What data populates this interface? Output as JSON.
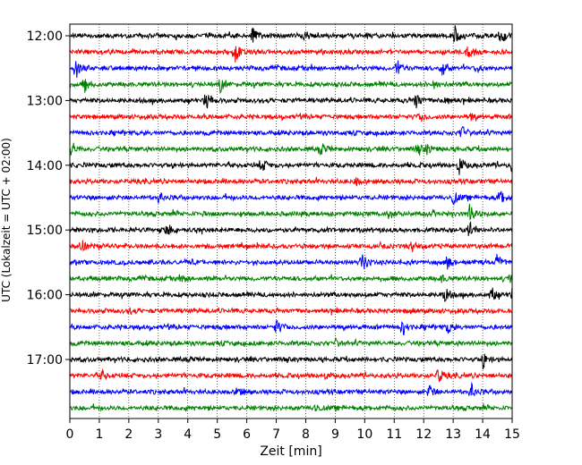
{
  "chart_data": {
    "type": "line",
    "title": "",
    "xlabel": "Zeit  [min]",
    "ylabel": "UTC (Lokalzeit = UTC + 02:00)",
    "xlim": [
      0,
      15
    ],
    "x_ticks": [
      "0",
      "1",
      "2",
      "3",
      "4",
      "5",
      "6",
      "7",
      "8",
      "9",
      "10",
      "11",
      "12",
      "13",
      "14",
      "15"
    ],
    "y_tick_labels": [
      "12:00",
      "13:00",
      "14:00",
      "15:00",
      "16:00",
      "17:00"
    ],
    "grid": "vertical dotted at each minute",
    "trace_colors": [
      "#000000",
      "#ff0000",
      "#0000ff",
      "#008000"
    ],
    "traces": [
      {
        "start": "12:00",
        "color": "#000000",
        "events": [
          [
            6.2,
            1.0
          ],
          [
            8.0,
            0.5
          ],
          [
            13.05,
            1.0
          ],
          [
            14.6,
            0.8
          ]
        ]
      },
      {
        "start": "12:15",
        "color": "#ff0000",
        "events": [
          [
            5.6,
            1.2
          ],
          [
            13.5,
            0.9
          ]
        ]
      },
      {
        "start": "12:30",
        "color": "#0000ff",
        "events": [
          [
            0.2,
            1.2
          ],
          [
            11.1,
            0.9
          ],
          [
            12.6,
            1.3
          ],
          [
            13.8,
            0.6
          ]
        ]
      },
      {
        "start": "12:45",
        "color": "#008000",
        "events": [
          [
            0.5,
            0.8
          ],
          [
            5.1,
            0.8
          ],
          [
            12.3,
            0.5
          ]
        ]
      },
      {
        "start": "13:00",
        "color": "#000000",
        "events": [
          [
            4.6,
            1.3
          ],
          [
            11.7,
            1.2
          ],
          [
            12.7,
            0.8
          ]
        ]
      },
      {
        "start": "13:15",
        "color": "#ff0000",
        "events": [
          [
            11.9,
            0.5
          ],
          [
            13.6,
            0.4
          ]
        ]
      },
      {
        "start": "13:30",
        "color": "#0000ff",
        "events": [
          [
            13.3,
            0.8
          ]
        ]
      },
      {
        "start": "13:45",
        "color": "#008000",
        "events": [
          [
            0.05,
            1.0
          ],
          [
            8.5,
            0.7
          ],
          [
            11.8,
            0.5
          ],
          [
            12.1,
            0.5
          ]
        ]
      },
      {
        "start": "14:00",
        "color": "#000000",
        "events": [
          [
            6.5,
            0.8
          ],
          [
            13.2,
            1.0
          ],
          [
            15.0,
            1.3
          ]
        ]
      },
      {
        "start": "14:15",
        "color": "#ff0000",
        "events": [
          [
            9.7,
            0.4
          ]
        ]
      },
      {
        "start": "14:30",
        "color": "#0000ff",
        "events": [
          [
            3.0,
            0.6
          ],
          [
            13.0,
            0.8
          ],
          [
            14.6,
            1.0
          ]
        ]
      },
      {
        "start": "14:45",
        "color": "#008000",
        "events": [
          [
            10.8,
            0.5
          ],
          [
            13.55,
            1.1
          ]
        ]
      },
      {
        "start": "15:00",
        "color": "#000000",
        "events": [
          [
            3.3,
            0.8
          ],
          [
            13.5,
            0.9
          ]
        ]
      },
      {
        "start": "15:15",
        "color": "#ff0000",
        "events": [
          [
            0.4,
            0.9
          ],
          [
            11.6,
            0.7
          ]
        ]
      },
      {
        "start": "15:30",
        "color": "#0000ff",
        "events": [
          [
            9.9,
            1.2
          ],
          [
            12.8,
            0.8
          ],
          [
            14.5,
            0.9
          ]
        ]
      },
      {
        "start": "15:45",
        "color": "#008000",
        "events": [
          [
            3.8,
            0.4
          ],
          [
            12.6,
            0.4
          ],
          [
            14.9,
            0.5
          ]
        ]
      },
      {
        "start": "16:00",
        "color": "#000000",
        "events": [
          [
            12.7,
            1.0
          ],
          [
            14.3,
            0.9
          ],
          [
            15.0,
            1.1
          ]
        ]
      },
      {
        "start": "16:15",
        "color": "#ff0000",
        "events": [
          [
            2.0,
            0.3
          ],
          [
            11.5,
            0.3
          ]
        ]
      },
      {
        "start": "16:30",
        "color": "#0000ff",
        "events": [
          [
            7.0,
            0.9
          ],
          [
            11.3,
            0.9
          ],
          [
            12.8,
            0.8
          ]
        ]
      },
      {
        "start": "16:45",
        "color": "#008000",
        "events": [
          [
            9.0,
            0.4
          ]
        ]
      },
      {
        "start": "17:00",
        "color": "#000000",
        "events": [
          [
            14.0,
            0.9
          ]
        ]
      },
      {
        "start": "17:15",
        "color": "#ff0000",
        "events": [
          [
            1.1,
            0.6
          ],
          [
            8.6,
            0.4
          ],
          [
            12.5,
            1.0
          ]
        ]
      },
      {
        "start": "17:30",
        "color": "#0000ff",
        "events": [
          [
            5.7,
            0.6
          ],
          [
            12.2,
            0.9
          ],
          [
            13.6,
            0.9
          ]
        ]
      },
      {
        "start": "17:45",
        "color": "#008000",
        "events": [
          [
            8.3,
            0.5
          ]
        ]
      }
    ]
  }
}
